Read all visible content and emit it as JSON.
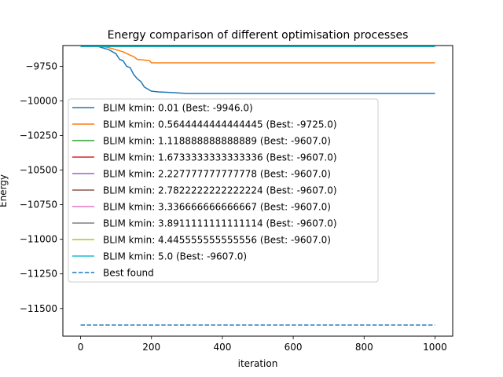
{
  "chart_data": {
    "type": "line",
    "title": "Energy comparison of different optimisation processes",
    "xlabel": "iteration",
    "ylabel": "Energy",
    "xlim": [
      -50,
      1050
    ],
    "ylim": [
      -11700,
      -9600
    ],
    "xticks": [
      0,
      200,
      400,
      600,
      800,
      1000
    ],
    "yticks": [
      -11500,
      -11250,
      -11000,
      -10750,
      -10500,
      -10250,
      -10000,
      -9750
    ],
    "ytick_labels": [
      "−11500",
      "−11250",
      "−11000",
      "−10750",
      "−10500",
      "−10250",
      "−10000",
      "−9750"
    ],
    "grid": false,
    "legend_position": "center-left",
    "series": [
      {
        "name": "BLIM kmin: 0.01 (Best: -9946.0)",
        "color": "#1f77b4",
        "style": "solid",
        "x": [
          0,
          50,
          80,
          100,
          110,
          120,
          130,
          140,
          150,
          160,
          170,
          180,
          190,
          200,
          220,
          260,
          300,
          1000
        ],
        "y": [
          -9607,
          -9607,
          -9630,
          -9660,
          -9700,
          -9710,
          -9750,
          -9760,
          -9810,
          -9840,
          -9860,
          -9900,
          -9915,
          -9930,
          -9935,
          -9940,
          -9946,
          -9946
        ]
      },
      {
        "name": "BLIM kmin: 0.5644444444444445 (Best: -9725.0)",
        "color": "#ff7f0e",
        "style": "solid",
        "x": [
          0,
          60,
          80,
          100,
          120,
          140,
          150,
          160,
          180,
          195,
          200,
          1000
        ],
        "y": [
          -9607,
          -9607,
          -9615,
          -9630,
          -9645,
          -9670,
          -9680,
          -9700,
          -9705,
          -9710,
          -9725,
          -9725
        ]
      },
      {
        "name": "BLIM kmin: 1.118888888888889 (Best: -9607.0)",
        "color": "#2ca02c",
        "style": "solid",
        "x": [
          0,
          1000
        ],
        "y": [
          -9607,
          -9607
        ]
      },
      {
        "name": "BLIM kmin: 1.6733333333333336 (Best: -9607.0)",
        "color": "#d62728",
        "style": "solid",
        "x": [
          0,
          1000
        ],
        "y": [
          -9607,
          -9607
        ]
      },
      {
        "name": "BLIM kmin: 2.227777777777778 (Best: -9607.0)",
        "color": "#9467bd",
        "style": "solid",
        "x": [
          0,
          1000
        ],
        "y": [
          -9607,
          -9607
        ]
      },
      {
        "name": "BLIM kmin: 2.7822222222222224 (Best: -9607.0)",
        "color": "#8c564b",
        "style": "solid",
        "x": [
          0,
          1000
        ],
        "y": [
          -9607,
          -9607
        ]
      },
      {
        "name": "BLIM kmin: 3.336666666666667 (Best: -9607.0)",
        "color": "#e377c2",
        "style": "solid",
        "x": [
          0,
          1000
        ],
        "y": [
          -9607,
          -9607
        ]
      },
      {
        "name": "BLIM kmin: 3.8911111111111114 (Best: -9607.0)",
        "color": "#7f7f7f",
        "style": "solid",
        "x": [
          0,
          1000
        ],
        "y": [
          -9607,
          -9607
        ]
      },
      {
        "name": "BLIM kmin: 4.445555555555556 (Best: -9607.0)",
        "color": "#bcbd22",
        "style": "solid",
        "x": [
          0,
          1000
        ],
        "y": [
          -9607,
          -9607
        ]
      },
      {
        "name": "BLIM kmin: 5.0 (Best: -9607.0)",
        "color": "#17becf",
        "style": "solid",
        "x": [
          0,
          1000
        ],
        "y": [
          -9607,
          -9607
        ]
      },
      {
        "name": "Best found",
        "color": "#1f77b4",
        "style": "dashed",
        "x": [
          0,
          1000
        ],
        "y": [
          -11620,
          -11620
        ]
      }
    ]
  }
}
